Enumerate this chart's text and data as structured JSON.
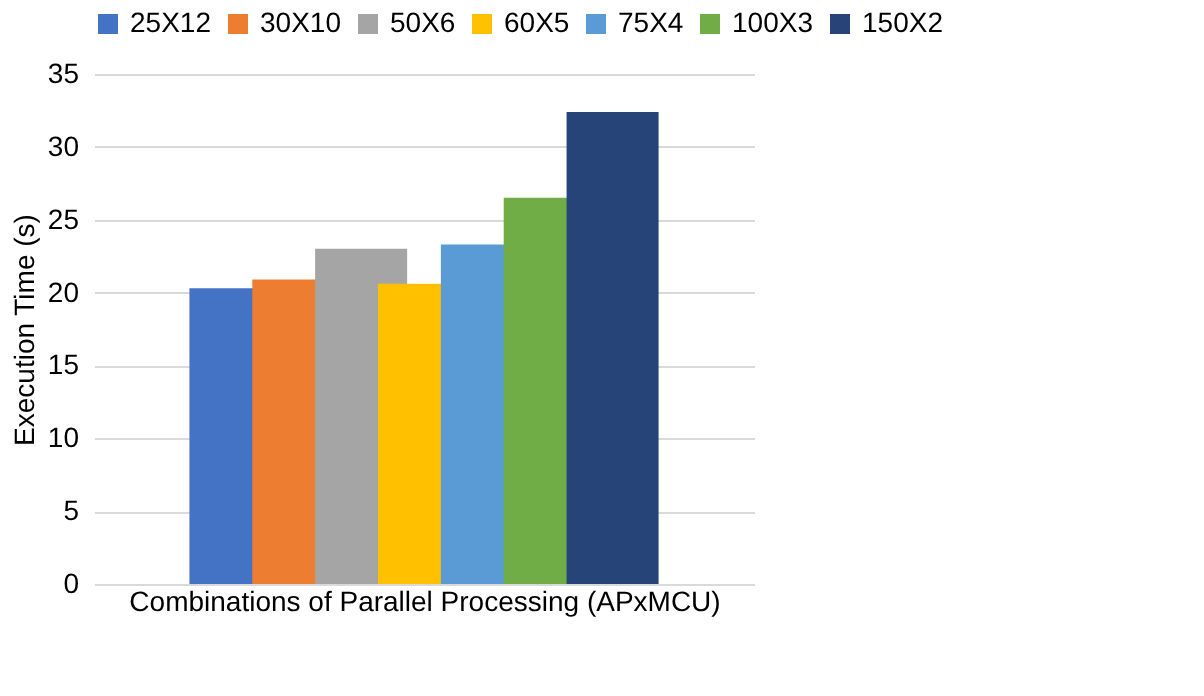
{
  "chart_data": {
    "type": "bar",
    "xlabel": "Combinations of Parallel Processing (APxMCU)",
    "ylabel": "Execution Time (s)",
    "categories": [
      null
    ],
    "ylim": [
      0,
      35
    ],
    "yticks": [
      0,
      5,
      10,
      15,
      20,
      25,
      30,
      35
    ],
    "grid": "y",
    "legend": "top",
    "series": [
      {
        "name": "25X12",
        "color": "#4472c4",
        "values": [
          20.3
        ]
      },
      {
        "name": "30X10",
        "color": "#ed7d31",
        "values": [
          20.9
        ]
      },
      {
        "name": "50X6",
        "color": "#a5a5a5",
        "values": [
          23.0
        ]
      },
      {
        "name": "60X5",
        "color": "#ffc000",
        "values": [
          20.6
        ]
      },
      {
        "name": "75X4",
        "color": "#5b9bd5",
        "values": [
          23.3
        ]
      },
      {
        "name": "100X3",
        "color": "#70ad47",
        "values": [
          26.5
        ]
      },
      {
        "name": "150X2",
        "color": "#264478",
        "values": [
          32.4
        ]
      }
    ]
  }
}
